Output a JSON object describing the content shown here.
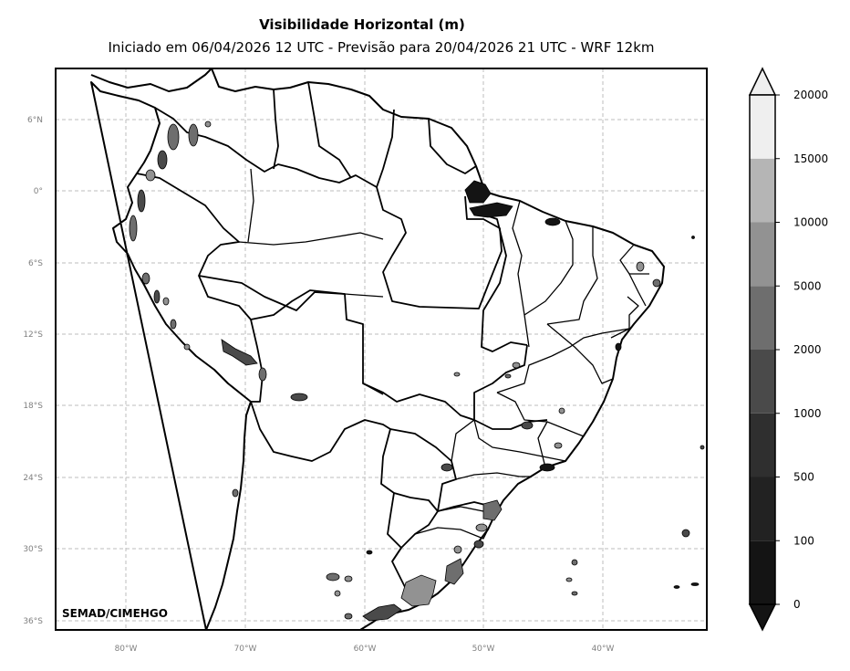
{
  "title": "Visibilidade Horizontal (m)",
  "subtitle": "Iniciado em 06/04/2026 12 UTC - Previsão para 20/04/2026 21 UTC - WRF 12km",
  "credit": "SEMAD/CIMEHGO",
  "lon_labels": [
    "80°W",
    "70°W",
    "60°W",
    "50°W",
    "40°W"
  ],
  "lat_labels": [
    "6°N",
    "0°",
    "6°S",
    "12°S",
    "18°S",
    "24°S",
    "30°S",
    "36°S"
  ],
  "colorbar": {
    "labels": [
      "0",
      "100",
      "500",
      "1000",
      "2000",
      "5000",
      "10000",
      "15000",
      "20000"
    ],
    "colors": [
      "#141414",
      "#222222",
      "#2f2f2f",
      "#4a4a4a",
      "#6e6e6e",
      "#929292",
      "#b5b5b5",
      "#efefef"
    ],
    "extend": "both"
  },
  "grid": true,
  "colormap": "greyscale"
}
